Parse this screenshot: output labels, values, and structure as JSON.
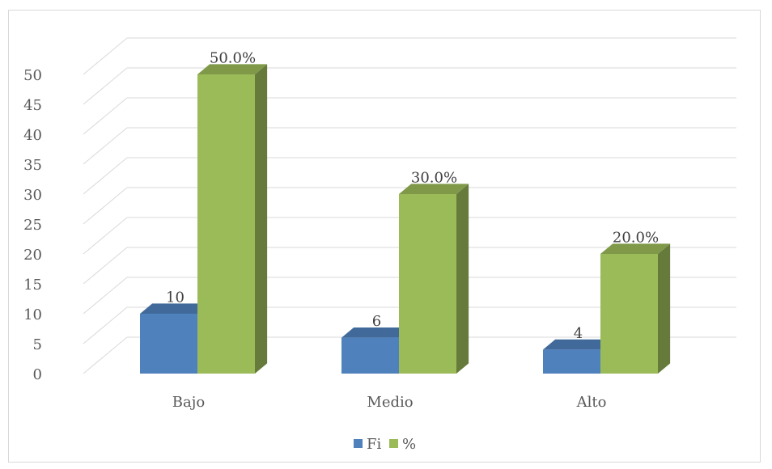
{
  "chart_data": {
    "type": "bar",
    "categories": [
      "Bajo",
      "Medio",
      "Alto"
    ],
    "series": [
      {
        "name": "Fi",
        "values": [
          10,
          6,
          4
        ],
        "labels": [
          "10",
          "6",
          "4"
        ],
        "color": "#4f81bd"
      },
      {
        "name": "%",
        "values": [
          50,
          30,
          20
        ],
        "labels": [
          "50.0%",
          "30.0%",
          "20.0%"
        ],
        "color": "#9bbb59"
      }
    ],
    "ylim": [
      0,
      50
    ],
    "yticks": [
      "0",
      "5",
      "10",
      "15",
      "20",
      "25",
      "30",
      "35",
      "40",
      "45",
      "50"
    ],
    "grid": true,
    "legend": "bottom",
    "title": "",
    "xlabel": "",
    "ylabel": ""
  }
}
